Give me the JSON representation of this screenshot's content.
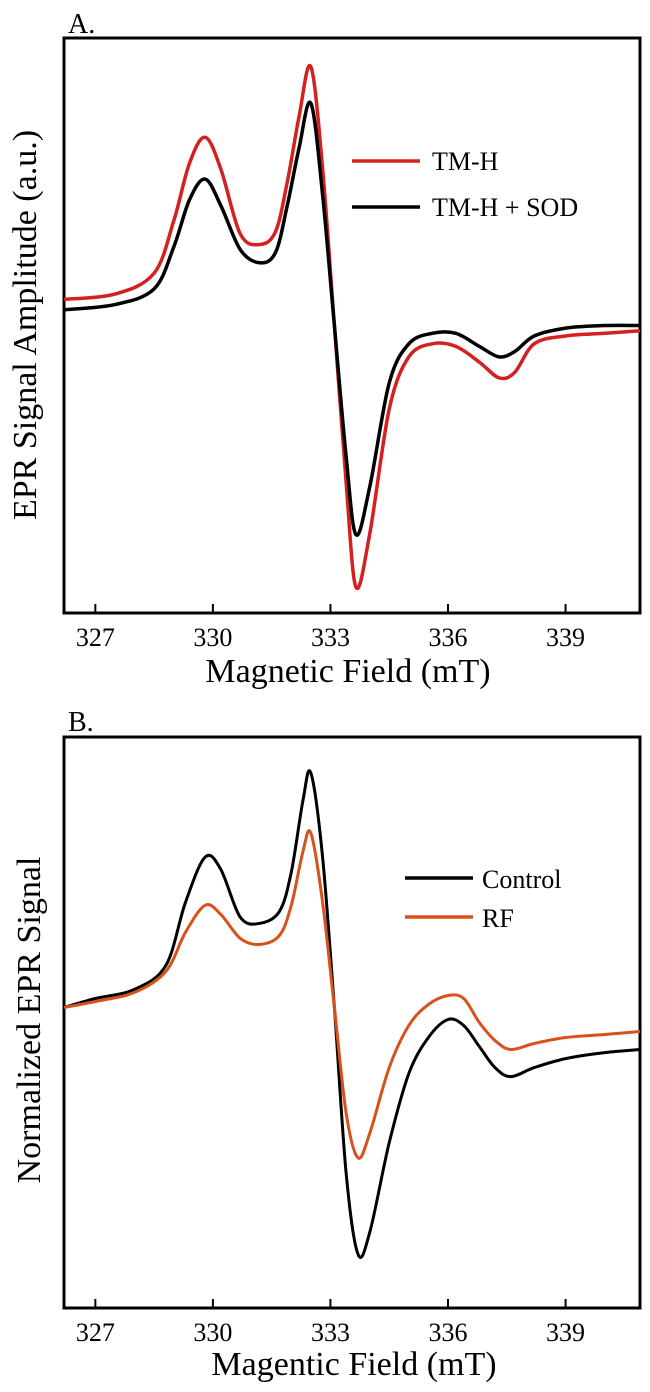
{
  "chart_data": [
    {
      "type": "line",
      "panel_label": "A.",
      "xlabel": "Magnetic Field (mT)",
      "ylabel": "EPR Signal Amplitude (a.u.)",
      "xlim": [
        326.2,
        340.9
      ],
      "ylim": [
        -1.1,
        1.1
      ],
      "xticks": [
        327,
        330,
        333,
        336,
        339
      ],
      "xtick_labels": [
        "327",
        "330",
        "333",
        "336",
        "339"
      ],
      "grid": false,
      "legend_position": "top-right",
      "series": [
        {
          "name": "TM-H",
          "color": "#d62020",
          "x": [
            326.2,
            327.5,
            328.5,
            329.0,
            329.4,
            329.8,
            330.2,
            330.7,
            331.2,
            331.6,
            331.9,
            332.2,
            332.5,
            332.8,
            333.1,
            333.4,
            333.65,
            334.0,
            334.5,
            335.0,
            335.6,
            336.2,
            336.8,
            337.3,
            337.7,
            338.2,
            339.0,
            340.0,
            340.9
          ],
          "values": [
            0.1,
            0.12,
            0.2,
            0.4,
            0.62,
            0.72,
            0.6,
            0.35,
            0.31,
            0.36,
            0.55,
            0.8,
            0.99,
            0.6,
            0.0,
            -0.6,
            -1.0,
            -0.8,
            -0.32,
            -0.12,
            -0.07,
            -0.08,
            -0.14,
            -0.2,
            -0.18,
            -0.07,
            -0.04,
            -0.03,
            -0.02
          ]
        },
        {
          "name": "TM-H + SOD",
          "color": "#000000",
          "x": [
            326.2,
            327.5,
            328.5,
            329.0,
            329.4,
            329.8,
            330.2,
            330.7,
            331.2,
            331.6,
            331.9,
            332.2,
            332.5,
            332.8,
            333.1,
            333.4,
            333.65,
            334.0,
            334.5,
            335.0,
            335.6,
            336.2,
            336.8,
            337.3,
            337.7,
            338.2,
            339.0,
            340.0,
            340.9
          ],
          "values": [
            0.06,
            0.08,
            0.14,
            0.3,
            0.48,
            0.56,
            0.46,
            0.29,
            0.24,
            0.28,
            0.46,
            0.68,
            0.85,
            0.5,
            0.0,
            -0.5,
            -0.8,
            -0.62,
            -0.22,
            -0.07,
            -0.03,
            -0.03,
            -0.08,
            -0.12,
            -0.1,
            -0.04,
            -0.01,
            0.0,
            0.0
          ]
        }
      ]
    },
    {
      "type": "line",
      "panel_label": "B.",
      "xlabel": "Magentic Field (mT)",
      "ylabel": "Normalized EPR Signal",
      "xlim": [
        326.2,
        340.9
      ],
      "ylim": [
        -1.0,
        0.9
      ],
      "xticks": [
        327,
        330,
        333,
        336,
        339
      ],
      "xtick_labels": [
        "327",
        "330",
        "333",
        "336",
        "339"
      ],
      "grid": false,
      "legend_position": "top-right",
      "series": [
        {
          "name": "Control",
          "color": "#000000",
          "x": [
            326.2,
            327.0,
            328.0,
            328.8,
            329.3,
            329.8,
            330.2,
            330.7,
            331.2,
            331.7,
            332.0,
            332.3,
            332.5,
            332.8,
            333.1,
            333.4,
            333.7,
            334.0,
            334.5,
            335.0,
            335.5,
            336.0,
            336.4,
            336.8,
            337.2,
            337.6,
            338.2,
            339.0,
            340.0,
            340.9
          ],
          "values": [
            0.0,
            0.03,
            0.06,
            0.14,
            0.35,
            0.5,
            0.46,
            0.3,
            0.28,
            0.32,
            0.45,
            0.69,
            0.78,
            0.5,
            0.0,
            -0.55,
            -0.82,
            -0.75,
            -0.45,
            -0.22,
            -0.1,
            -0.04,
            -0.06,
            -0.13,
            -0.2,
            -0.23,
            -0.2,
            -0.17,
            -0.15,
            -0.14
          ]
        },
        {
          "name": "RF",
          "color": "#d8501a",
          "x": [
            326.2,
            327.0,
            328.0,
            328.8,
            329.3,
            329.8,
            330.2,
            330.7,
            331.2,
            331.7,
            332.0,
            332.3,
            332.5,
            332.8,
            333.1,
            333.4,
            333.7,
            334.0,
            334.5,
            335.0,
            335.5,
            336.0,
            336.4,
            336.8,
            337.2,
            337.6,
            338.2,
            339.0,
            340.0,
            340.9
          ],
          "values": [
            0.0,
            0.02,
            0.05,
            0.12,
            0.25,
            0.34,
            0.31,
            0.23,
            0.21,
            0.24,
            0.34,
            0.52,
            0.58,
            0.35,
            0.0,
            -0.35,
            -0.5,
            -0.42,
            -0.2,
            -0.06,
            0.01,
            0.04,
            0.03,
            -0.05,
            -0.11,
            -0.14,
            -0.12,
            -0.1,
            -0.09,
            -0.08
          ]
        }
      ]
    }
  ]
}
